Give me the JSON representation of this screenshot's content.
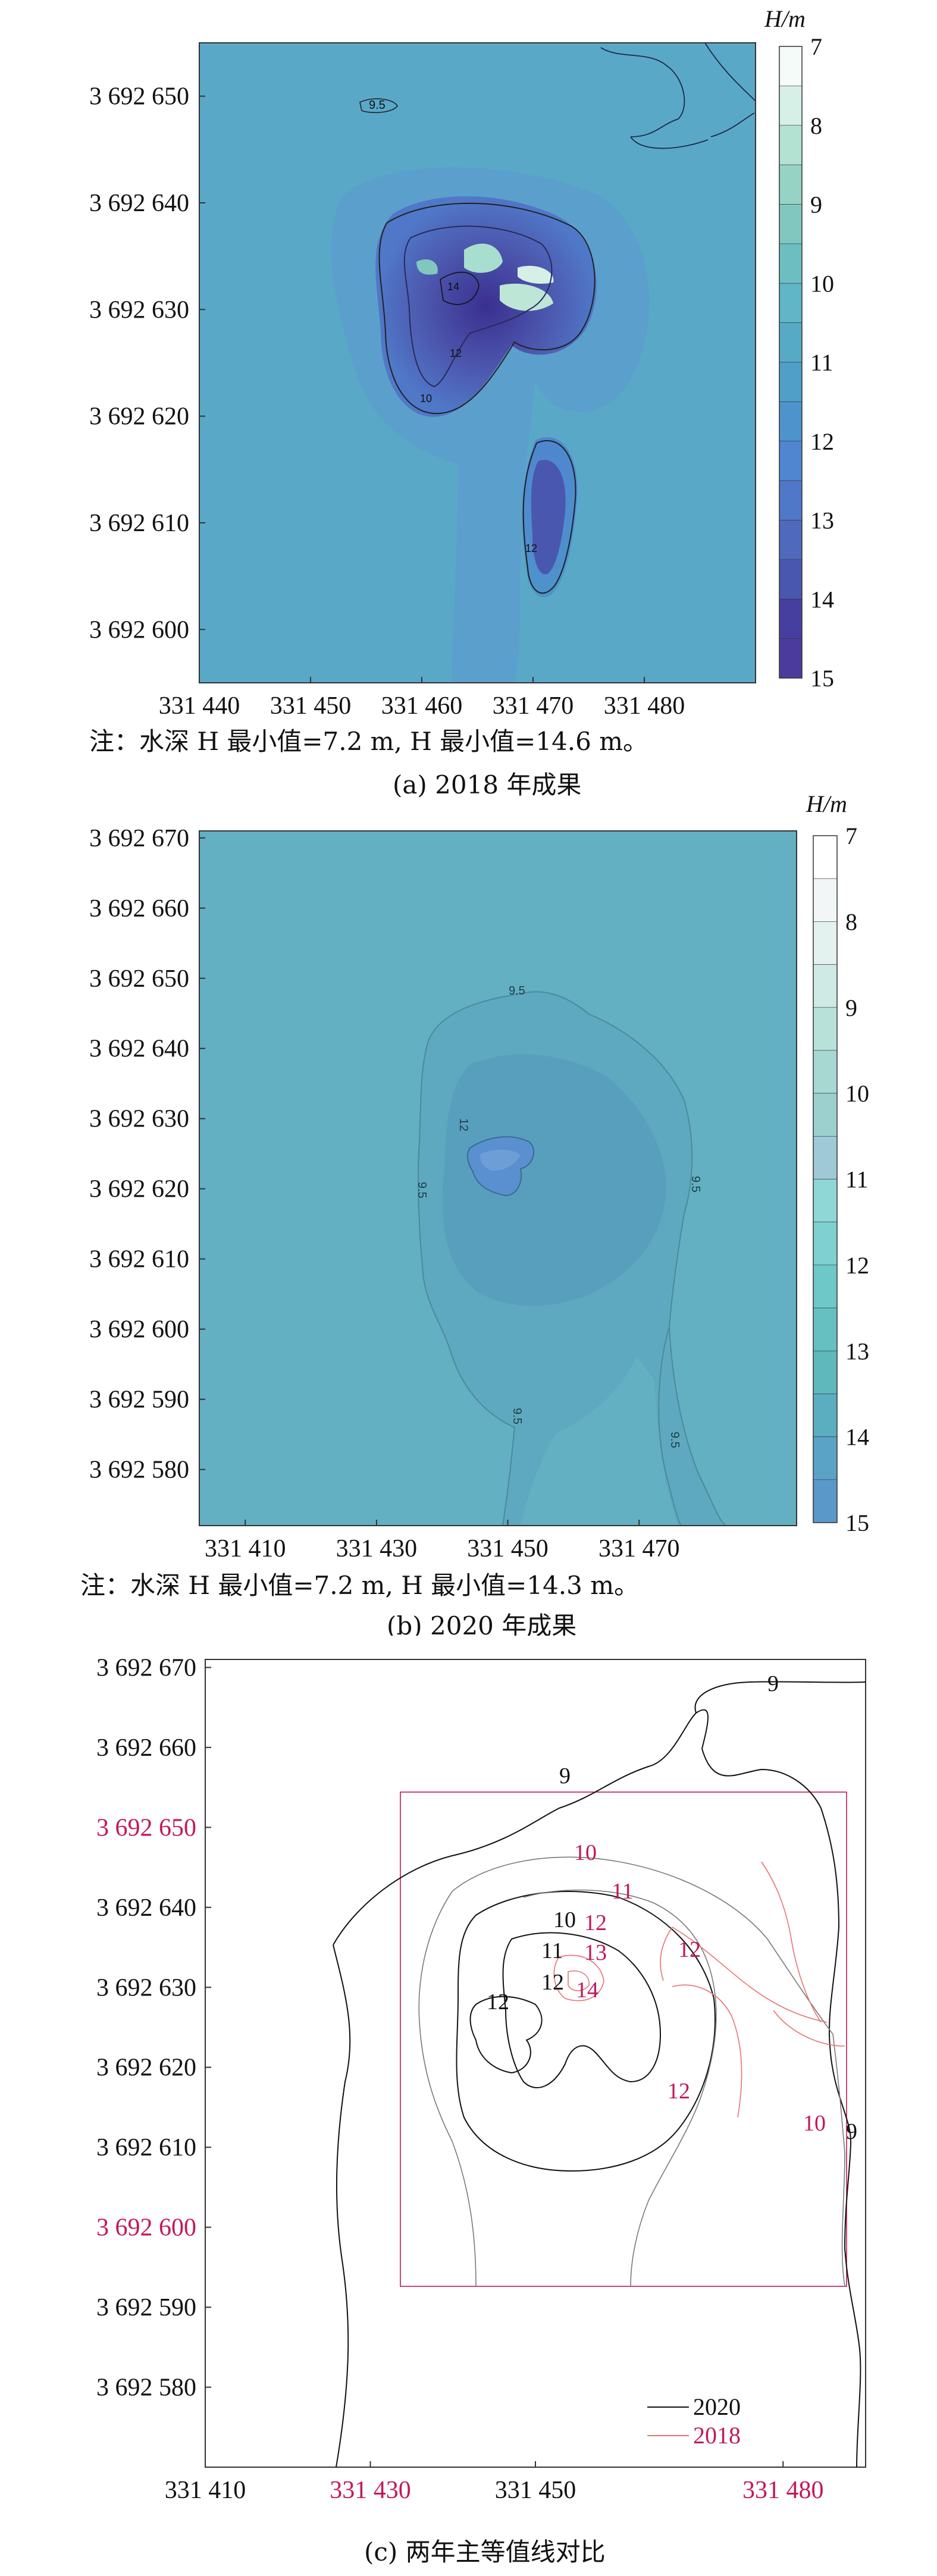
{
  "colors": {
    "frame": "#333333",
    "text": "#111111",
    "accent_2018": "#c2185b",
    "contour_2020": "#111111",
    "contour_2018": "#e57373",
    "field_a_base": "#5aa8c8",
    "field_b_base": "#62b0c2"
  },
  "chart_data": [
    {
      "type": "heatmap",
      "panel": "a",
      "title": "",
      "caption": "(a) 2018 年成果",
      "note": "注：水深 H 最小值=7.2 m, H 最小值=14.6 m。",
      "colorbar_title": "H/m",
      "colorbar_ticks": [
        "7",
        "8",
        "9",
        "10",
        "11",
        "12",
        "13",
        "14",
        "15"
      ],
      "colorbar_levels": [
        7,
        7.5,
        8,
        8.5,
        9,
        9.5,
        10,
        10.5,
        11,
        11.5,
        12,
        12.5,
        13,
        13.5,
        14,
        14.5,
        15
      ],
      "colorbar_colors": [
        "#f4fbf8",
        "#d6f0e8",
        "#b4e2d2",
        "#97d3c4",
        "#80c8bf",
        "#6dbec0",
        "#60b5c6",
        "#57aac6",
        "#4f9fc9",
        "#4e93cc",
        "#4f86cf",
        "#5078c8",
        "#4f69bc",
        "#4a57ae",
        "#463f9f",
        "#4b3b9c"
      ],
      "x_ticks": [
        "331 440",
        "331 450",
        "331 460",
        "331 470",
        "331 480"
      ],
      "x_tick_values": [
        331440,
        331450,
        331460,
        331470,
        331480
      ],
      "y_ticks": [
        "3 692 650",
        "3 692 640",
        "3 692 630",
        "3 692 620",
        "3 692 610",
        "3 692 600"
      ],
      "y_tick_values": [
        3692650,
        3692640,
        3692630,
        3692620,
        3692610,
        3692600
      ],
      "xlim": [
        331440,
        331490
      ],
      "ylim": [
        3692595,
        3692655
      ],
      "contour_labels": [
        "9.5",
        "10",
        "12",
        "14",
        "12"
      ],
      "min_depth": 7.2,
      "max_depth": 14.6
    },
    {
      "type": "heatmap",
      "panel": "b",
      "title": "",
      "caption": "(b) 2020 年成果",
      "note": "注：水深 H 最小值=7.2 m, H 最小值=14.3 m。",
      "colorbar_title": "H/m",
      "colorbar_ticks": [
        "7",
        "8",
        "9",
        "10",
        "11",
        "12",
        "13",
        "14",
        "15"
      ],
      "colorbar_levels": [
        7,
        7.5,
        8,
        8.5,
        9,
        9.5,
        10,
        10.5,
        11,
        11.5,
        12,
        12.5,
        13,
        13.5,
        14,
        14.5,
        15
      ],
      "colorbar_colors": [
        "#ffffff",
        "#f2f6f6",
        "#e3f1ef",
        "#cfe9e4",
        "#b8e1da",
        "#a7d8d2",
        "#9bd0cf",
        "#9fc9d6",
        "#8fd6d6",
        "#7fd0d0",
        "#6fc8c8",
        "#66c0c2",
        "#5fb8bc",
        "#5aaec0",
        "#5aa2c6",
        "#5a98ca"
      ],
      "x_ticks": [
        "331 410",
        "331 430",
        "331 450",
        "331 470"
      ],
      "x_tick_values": [
        331410,
        331430,
        331450,
        331470
      ],
      "y_ticks": [
        "3 692 670",
        "3 692 660",
        "3 692 650",
        "3 692 640",
        "3 692 630",
        "3 692 620",
        "3 692 610",
        "3 692 600",
        "3 692 590",
        "3 692 580"
      ],
      "y_tick_values": [
        3692670,
        3692660,
        3692650,
        3692640,
        3692630,
        3692620,
        3692610,
        3692600,
        3692590,
        3692580
      ],
      "xlim": [
        331403,
        331494
      ],
      "ylim": [
        3692572,
        3692671
      ],
      "contour_labels": [
        "9.5",
        "12",
        "9.5",
        "9.5",
        "9.5",
        "9.5"
      ],
      "min_depth": 7.2,
      "max_depth": 14.3
    },
    {
      "type": "line",
      "panel": "c",
      "title": "",
      "caption": "(c) 两年主等值线对比",
      "x_ticks": [
        "331 410",
        "331 430",
        "331 450",
        "331 480"
      ],
      "x_tick_values": [
        331410,
        331430,
        331450,
        331480
      ],
      "x_tick_colors": [
        "#111111",
        "#c2185b",
        "#111111",
        "#c2185b"
      ],
      "y_ticks": [
        "3 692 670",
        "3 692 660",
        "3 692 650",
        "3 692 640",
        "3 692 630",
        "3 692 620",
        "3 692 610",
        "3 692 600",
        "3 692 590",
        "3 692 580"
      ],
      "y_tick_values": [
        3692670,
        3692660,
        3692650,
        3692640,
        3692630,
        3692620,
        3692610,
        3692600,
        3692590,
        3692580
      ],
      "y_tick_colors": [
        "#111111",
        "#111111",
        "#c2185b",
        "#111111",
        "#111111",
        "#111111",
        "#111111",
        "#c2185b",
        "#111111",
        "#111111"
      ],
      "xlim": [
        331410,
        331490
      ],
      "ylim": [
        3692570,
        3692671
      ],
      "legend": [
        {
          "name": "2020",
          "color": "#111111"
        },
        {
          "name": "2018",
          "color": "#e57373"
        }
      ],
      "legend_position": "bottom-right",
      "labels_2020": [
        "9",
        "9",
        "10",
        "11",
        "12",
        "12",
        "9"
      ],
      "labels_2018": [
        "10",
        "11",
        "12",
        "13",
        "14",
        "12",
        "12",
        "10"
      ]
    }
  ]
}
